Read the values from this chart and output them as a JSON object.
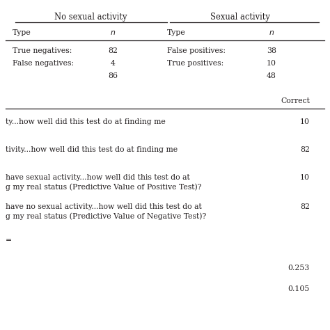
{
  "title_left": "No sexual activity",
  "title_right": "Sexual activity",
  "row1": [
    "True negatives:",
    "82",
    "False positives:",
    "38"
  ],
  "row2": [
    "False negatives:",
    "4",
    "True positives:",
    "10"
  ],
  "row3_vals": [
    "86",
    "48"
  ],
  "correct_label": "Correct",
  "bottom_rows": [
    {
      "text": "ty...how well did this test do at finding me",
      "value": "10"
    },
    {
      "text": "tivity...how well did this test do at finding me",
      "value": "82"
    },
    {
      "text": "have sexual activity...how well did this test do at\ng my real status (Predictive Value of Positive Test)?",
      "value": "10"
    },
    {
      "text": "have no sexual activity...how well did this test do at\ng my real status (Predictive Value of Negative Test)?",
      "value": "82"
    },
    {
      "text": "=",
      "value": ""
    },
    {
      "text": "",
      "value": "0.253"
    },
    {
      "text": "",
      "value": "0.105"
    }
  ],
  "bg_color": "#ffffff",
  "text_color": "#231f20",
  "line_color": "#231f20",
  "font_size": 7.8
}
